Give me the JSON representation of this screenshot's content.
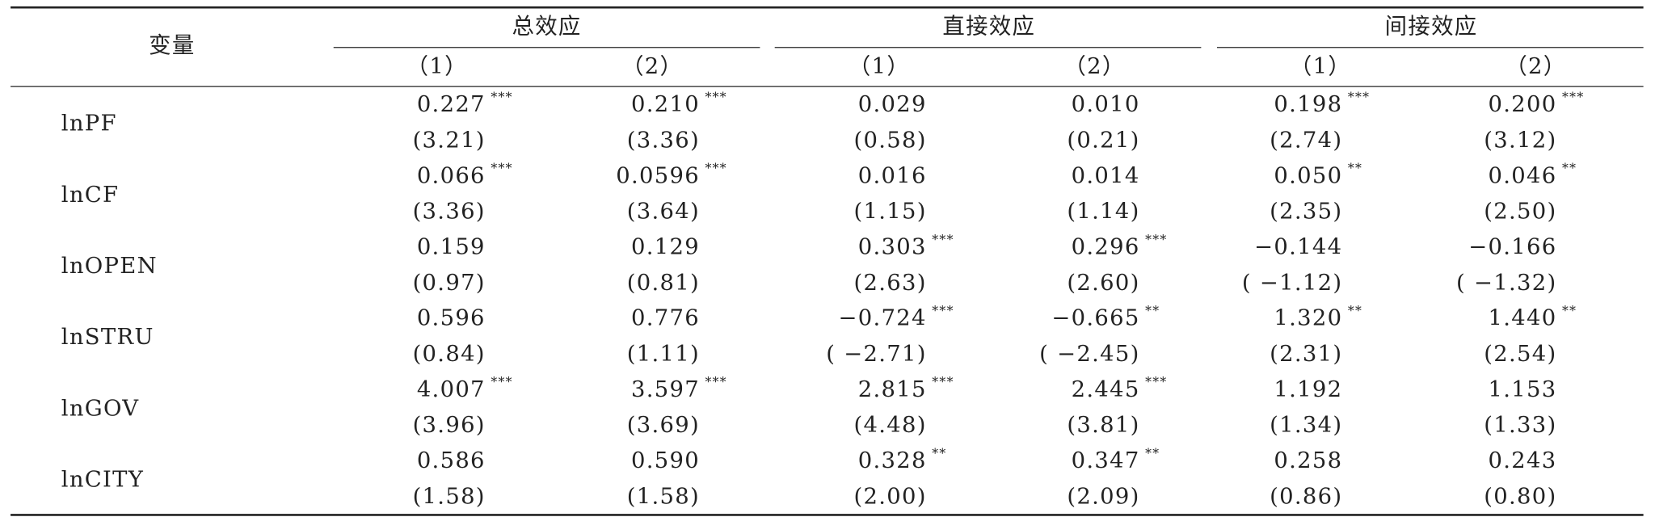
{
  "header": {
    "corner": "变量",
    "groups": [
      "总效应",
      "直接效应",
      "间接效应"
    ],
    "columns": [
      "（1）",
      "（2）",
      "（1）",
      "（2）",
      "（1）",
      "（2）"
    ]
  },
  "rows": [
    {
      "label": "lnPF",
      "cells": [
        {
          "coef": "0.227",
          "stars": "***",
          "t": "(3.21)"
        },
        {
          "coef": "0.210",
          "stars": "***",
          "t": "(3.36)"
        },
        {
          "coef": "0.029",
          "t": "(0.58)"
        },
        {
          "coef": "0.010",
          "t": "(0.21)"
        },
        {
          "coef": "0.198",
          "stars": "***",
          "t": "(2.74)"
        },
        {
          "coef": "0.200",
          "stars": "***",
          "t": "(3.12)"
        }
      ]
    },
    {
      "label": "lnCF",
      "cells": [
        {
          "coef": "0.066",
          "stars": "***",
          "t": "(3.36)"
        },
        {
          "coef": "0.0596",
          "stars": "***",
          "t": "(3.64)"
        },
        {
          "coef": "0.016",
          "t": "(1.15)"
        },
        {
          "coef": "0.014",
          "t": "(1.14)"
        },
        {
          "coef": "0.050",
          "stars": "**",
          "t": "(2.35)"
        },
        {
          "coef": "0.046",
          "stars": "**",
          "t": "(2.50)"
        }
      ]
    },
    {
      "label": "lnOPEN",
      "cells": [
        {
          "coef": "0.159",
          "t": "(0.97)"
        },
        {
          "coef": "0.129",
          "t": "(0.81)"
        },
        {
          "coef": "0.303",
          "stars": "***",
          "t": "(2.63)"
        },
        {
          "coef": "0.296",
          "stars": "***",
          "t": "(2.60)"
        },
        {
          "coef": "−0.144",
          "t": "( −1.12)"
        },
        {
          "coef": "−0.166",
          "t": "( −1.32)"
        }
      ]
    },
    {
      "label": "lnSTRU",
      "cells": [
        {
          "coef": "0.596",
          "t": "(0.84)"
        },
        {
          "coef": "0.776",
          "t": "(1.11)"
        },
        {
          "coef": "−0.724",
          "stars": "***",
          "t": "( −2.71)"
        },
        {
          "coef": "−0.665",
          "stars": "**",
          "t": "( −2.45)"
        },
        {
          "coef": "1.320",
          "stars": "**",
          "t": "(2.31)"
        },
        {
          "coef": "1.440",
          "stars": "**",
          "t": "(2.54)"
        }
      ]
    },
    {
      "label": "lnGOV",
      "cells": [
        {
          "coef": "4.007",
          "stars": "***",
          "t": "(3.96)"
        },
        {
          "coef": "3.597",
          "stars": "***",
          "t": "(3.69)"
        },
        {
          "coef": "2.815",
          "stars": "***",
          "t": "(4.48)"
        },
        {
          "coef": "2.445",
          "stars": "***",
          "t": "(3.81)"
        },
        {
          "coef": "1.192",
          "t": "(1.34)"
        },
        {
          "coef": "1.153",
          "t": "(1.33)"
        }
      ]
    },
    {
      "label": "lnCITY",
      "cells": [
        {
          "coef": "0.586",
          "t": "(1.58)"
        },
        {
          "coef": "0.590",
          "t": "(1.58)"
        },
        {
          "coef": "0.328",
          "stars": "**",
          "t": "(2.00)"
        },
        {
          "coef": "0.347",
          "stars": "**",
          "t": "(2.09)"
        },
        {
          "coef": "0.258",
          "t": "(0.86)"
        },
        {
          "coef": "0.243",
          "t": "(0.80)"
        }
      ]
    }
  ]
}
